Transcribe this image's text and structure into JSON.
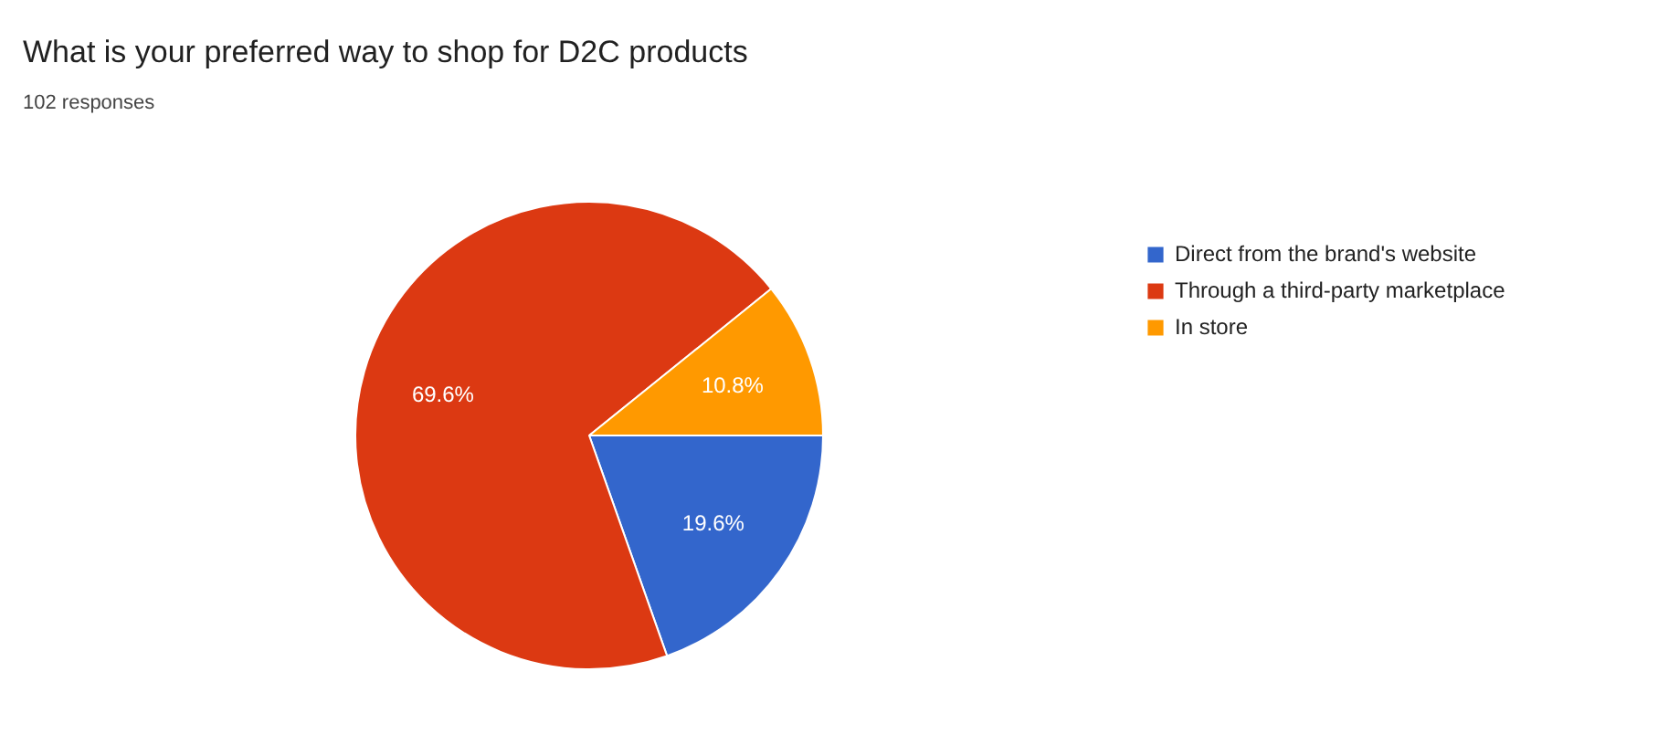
{
  "chart_data": {
    "type": "pie",
    "title": "What is your preferred way to shop for D2C products",
    "subtitle": "102 responses",
    "categories": [
      "Direct from the brand's website",
      "Through a third-party marketplace",
      "In store"
    ],
    "values": [
      19.6,
      69.6,
      10.8
    ],
    "colors": [
      "#3366cc",
      "#dc3912",
      "#ff9900"
    ],
    "value_labels": [
      "19.6%",
      "69.6%",
      "10.8%"
    ],
    "legend": "right"
  }
}
